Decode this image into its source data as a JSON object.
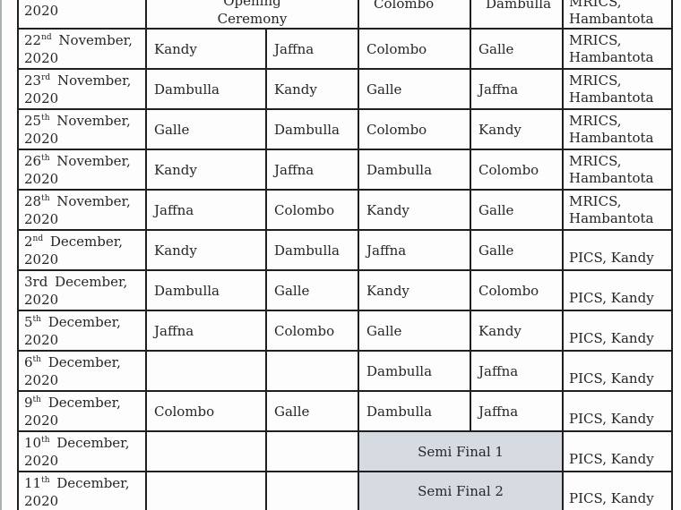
{
  "colors": {
    "border": "#1f1f1f",
    "semi_final_bg": "#d6dbe2",
    "final_bg": "#f3bd92",
    "text": "#262626"
  },
  "table": {
    "rows": [
      {
        "kind": "top-partial",
        "date_lines": [
          "2020"
        ],
        "opening_lines": [
          "Opening",
          "Ceremony"
        ],
        "teams": [
          "Colombo",
          "Dambulla"
        ],
        "venue": [
          "MRICS,",
          "Hambantota"
        ]
      },
      {
        "kind": "match",
        "date": {
          "day": "22",
          "ord": "nd",
          "month": "November,",
          "year": "2020"
        },
        "teams": [
          "Kandy",
          "Jaffna",
          "Colombo",
          "Galle"
        ],
        "venue": [
          "MRICS,",
          "Hambantota"
        ]
      },
      {
        "kind": "match",
        "date": {
          "day": "23",
          "ord": "rd",
          "month": "November,",
          "year": "2020"
        },
        "teams": [
          "Dambulla",
          "Kandy",
          "Galle",
          "Jaffna"
        ],
        "venue": [
          "MRICS,",
          "Hambantota"
        ]
      },
      {
        "kind": "match",
        "date": {
          "day": "25",
          "ord": "th",
          "month": "November,",
          "year": "2020"
        },
        "teams": [
          "Galle",
          "Dambulla",
          "Colombo",
          "Kandy"
        ],
        "venue": [
          "MRICS,",
          "Hambantota"
        ]
      },
      {
        "kind": "match",
        "date": {
          "day": "26",
          "ord": "th",
          "month": "November,",
          "year": "2020"
        },
        "teams": [
          "Kandy",
          "Jaffna",
          "Dambulla",
          "Colombo"
        ],
        "venue": [
          "MRICS,",
          "Hambantota"
        ]
      },
      {
        "kind": "match",
        "date": {
          "day": "28",
          "ord": "th",
          "month": "November,",
          "year": "2020"
        },
        "teams": [
          "Jaffna",
          "Colombo",
          "Kandy",
          "Galle"
        ],
        "venue": [
          "MRICS,",
          "Hambantota"
        ]
      },
      {
        "kind": "match",
        "date": {
          "day": "2",
          "ord": "nd",
          "month": "December,",
          "year": "2020"
        },
        "teams": [
          "Kandy",
          "Dambulla",
          "Jaffna",
          "Galle"
        ],
        "venue": [
          "PICS, Kandy"
        ]
      },
      {
        "kind": "match",
        "date": {
          "day": "3rd",
          "ord": "",
          "month": "December,",
          "year": "2020"
        },
        "teams": [
          "Dambulla",
          "Galle",
          "Kandy",
          "Colombo"
        ],
        "venue": [
          "PICS, Kandy"
        ]
      },
      {
        "kind": "match",
        "date": {
          "day": "5",
          "ord": "th",
          "month": "December,",
          "year": "2020"
        },
        "teams": [
          "Jaffna",
          "Colombo",
          "Galle",
          "Kandy"
        ],
        "venue": [
          "PICS, Kandy"
        ]
      },
      {
        "kind": "match",
        "date": {
          "day": "6",
          "ord": "th",
          "month": "December,",
          "year": "2020"
        },
        "teams": [
          "",
          "",
          "Dambulla",
          "Jaffna"
        ],
        "venue": [
          "PICS, Kandy"
        ]
      },
      {
        "kind": "match",
        "date": {
          "day": "9",
          "ord": "th",
          "month": "December,",
          "year": "2020"
        },
        "teams": [
          "Colombo",
          "Galle",
          "Dambulla",
          "Jaffna"
        ],
        "venue": [
          "PICS, Kandy"
        ]
      },
      {
        "kind": "semi",
        "date": {
          "day": "10",
          "ord": "th",
          "month": "December,",
          "year": "2020"
        },
        "label": "Semi Final 1",
        "venue": [
          "PICS, Kandy"
        ]
      },
      {
        "kind": "semi",
        "date": {
          "day": "11",
          "ord": "th",
          "month": "December,",
          "year": "2020"
        },
        "label": "Semi Final 2",
        "venue": [
          "PICS, Kandy"
        ]
      },
      {
        "kind": "bottom-partial"
      }
    ]
  }
}
